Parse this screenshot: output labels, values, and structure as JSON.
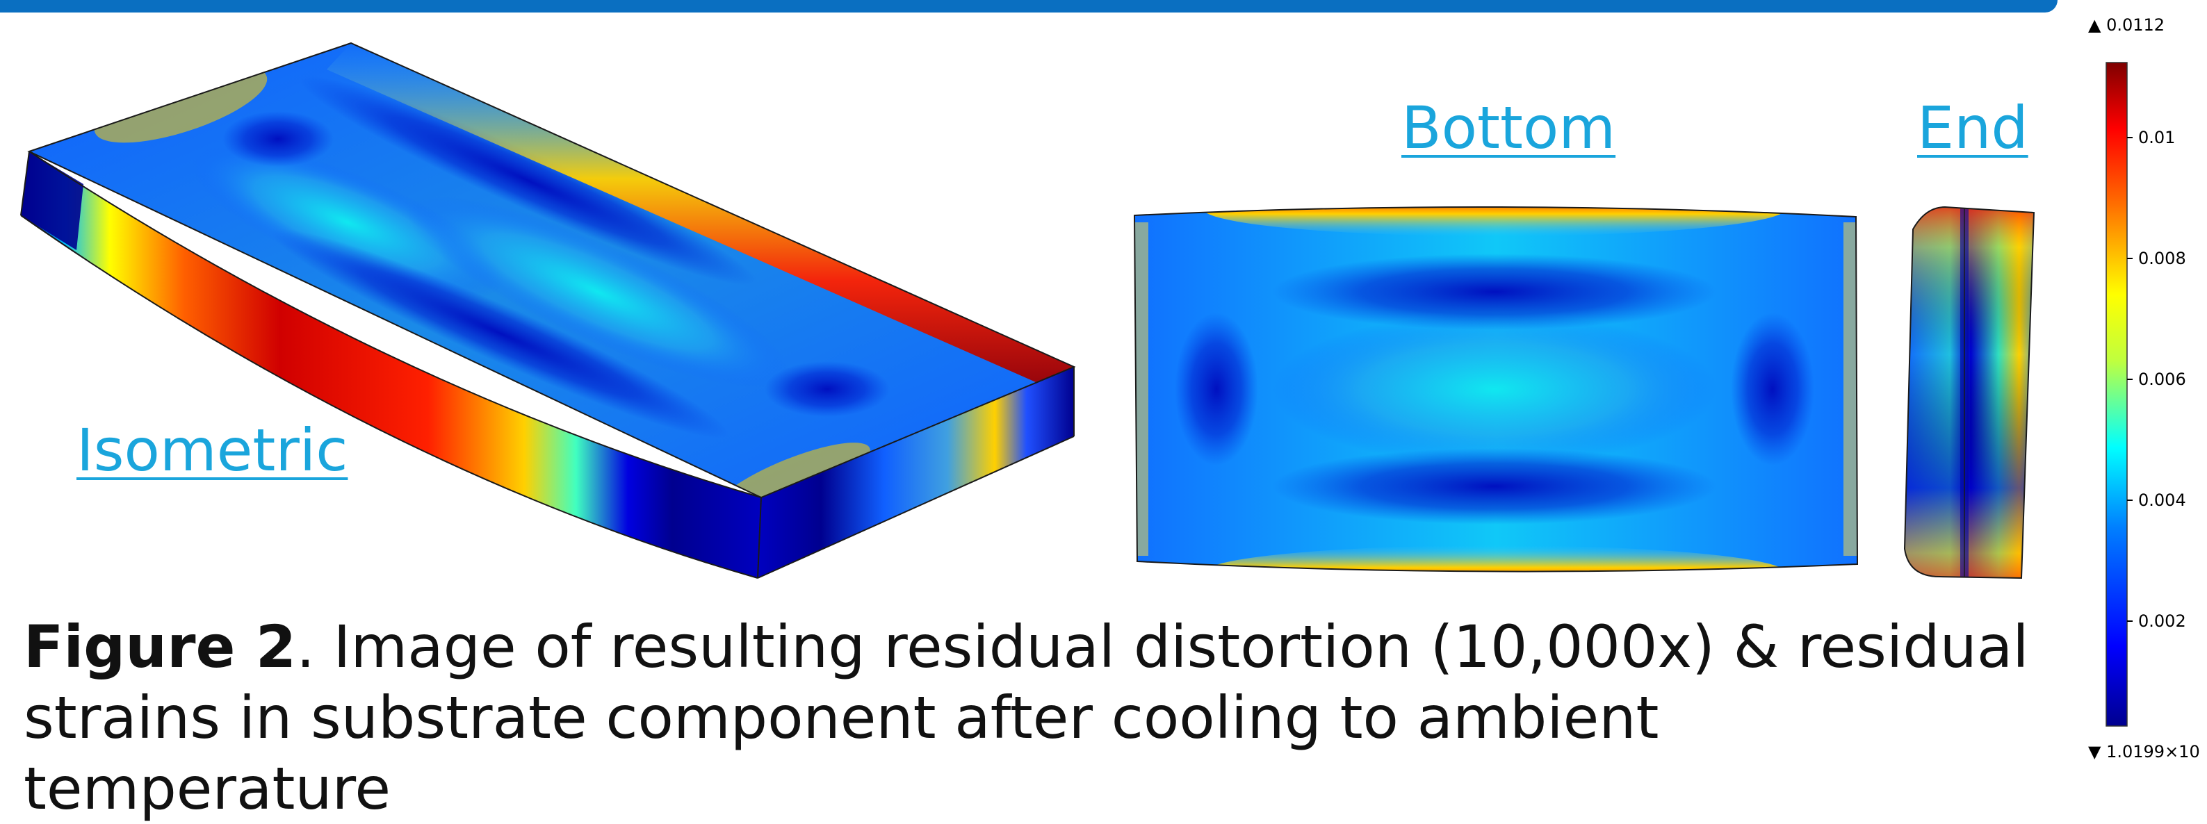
{
  "labels": {
    "isometric": "Isometric",
    "bottom": "Bottom",
    "end": "End"
  },
  "caption": {
    "bold": "Figure 2",
    "text": ". Image of resulting residual distortion (10,000x) & residual strains in substrate component after cooling to ambient temperature"
  },
  "colorbar": {
    "max_label": "▲ 0.0112",
    "min_label": "▼ 1.0199×10",
    "ticks": [
      "0.01",
      "0.008",
      "0.006",
      "0.004",
      "0.002"
    ],
    "colormap": [
      "#00008f",
      "#0000ff",
      "#00bfff",
      "#00ffff",
      "#bfff3f",
      "#ffff00",
      "#ff7f00",
      "#ff0000",
      "#7f0000"
    ]
  },
  "colors": {
    "banner": "#0a6fc1",
    "label": "#1aa5dc"
  }
}
